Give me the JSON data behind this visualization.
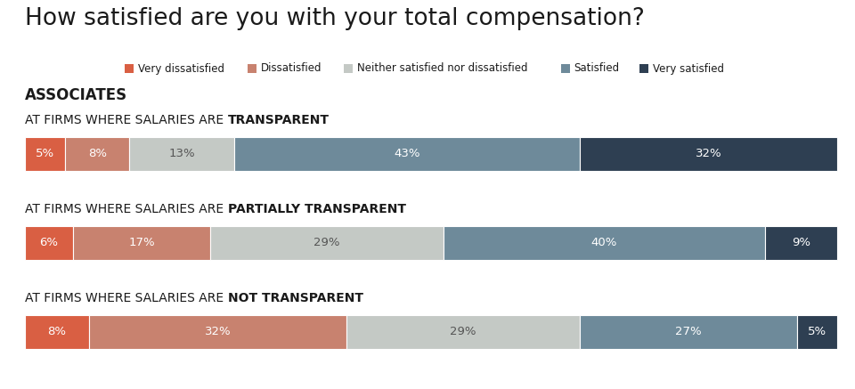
{
  "title": "How satisfied are you with your total compensation?",
  "section_label": "ASSOCIATES",
  "categories": [
    "Very dissatisfied",
    "Dissatisfied",
    "Neither satisfied nor dissatisfied",
    "Satisfied",
    "Very satisfied"
  ],
  "colors": [
    "#d95f43",
    "#c8826f",
    "#c4c9c5",
    "#6e8a9a",
    "#2e3f52"
  ],
  "bars": [
    {
      "label_normal": "AT FIRMS WHERE SALARIES ARE ",
      "label_bold": "TRANSPARENT",
      "values": [
        5,
        8,
        13,
        43,
        32
      ]
    },
    {
      "label_normal": "AT FIRMS WHERE SALARIES ARE ",
      "label_bold": "PARTIALLY TRANSPARENT",
      "values": [
        6,
        17,
        29,
        40,
        9
      ]
    },
    {
      "label_normal": "AT FIRMS WHERE SALARIES ARE ",
      "label_bold": "NOT TRANSPARENT",
      "values": [
        8,
        32,
        29,
        27,
        5
      ]
    }
  ],
  "background_color": "#ffffff",
  "text_color_dark": "#1a1a1a",
  "text_color_light": "#ffffff",
  "text_color_mid": "#555555",
  "title_fontsize": 19,
  "legend_fontsize": 8.5,
  "label_fontsize": 10,
  "section_fontsize": 12,
  "bar_label_fontsize": 9.5
}
